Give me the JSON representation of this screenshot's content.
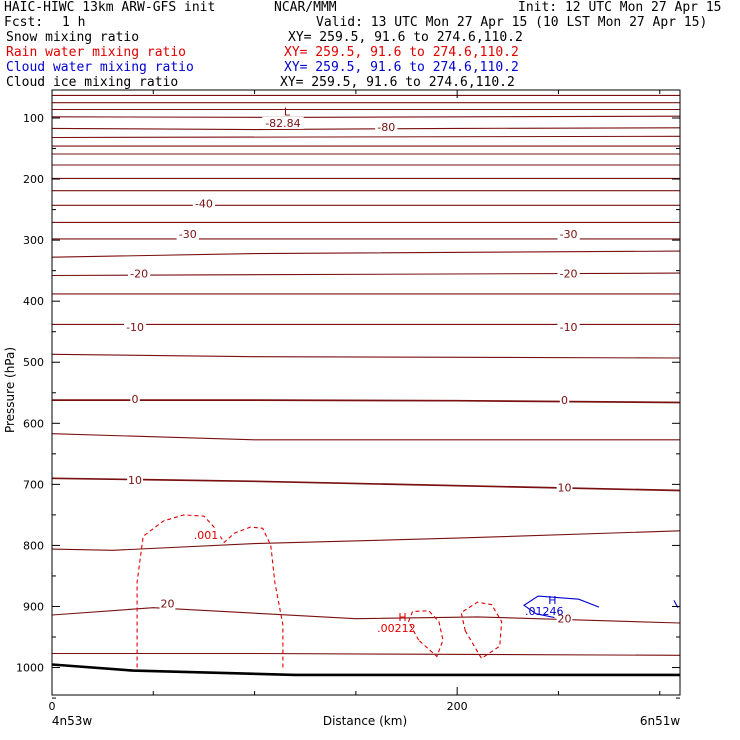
{
  "header": {
    "model": "HAIC-HIWC 13km ARW-GFS init",
    "org": "NCAR/MMM",
    "init": "Init: 12 UTC Mon 27 Apr 15",
    "fcst_label": "Fcst:",
    "fcst_value": "1 h",
    "valid": "Valid: 13 UTC Mon 27 Apr 15 (10 LST Mon 27 Apr 15)",
    "fields": [
      {
        "name": "Snow mixing ratio",
        "xy": "XY= 259.5, 91.6 to 274.6,110.2",
        "color": "#000000"
      },
      {
        "name": "Rain water mixing ratio",
        "xy": "XY= 259.5, 91.6 to 274.6,110.2",
        "color": "#e00000"
      },
      {
        "name": "Cloud water mixing ratio",
        "xy": "XY= 259.5, 91.6 to 274.6,110.2",
        "color": "#0000d0"
      },
      {
        "name": "Cloud ice mixing ratio",
        "xy": "XY= 259.5, 91.6 to 274.6,110.2",
        "color": "#000000"
      }
    ]
  },
  "chart_data": {
    "type": "line",
    "title": "",
    "xlabel": "Distance (km)",
    "ylabel": "Pressure (hPa)",
    "xlim": [
      0,
      310
    ],
    "ylim": [
      1050,
      50
    ],
    "x_ticks": [
      0,
      200
    ],
    "x_tick_labels": [
      "0",
      "200"
    ],
    "y_ticks": [
      100,
      200,
      300,
      400,
      500,
      600,
      700,
      800,
      900,
      1000
    ],
    "y_tick_labels": [
      "100",
      "200",
      "300",
      "400",
      "500",
      "600",
      "700",
      "800",
      "900",
      "1000"
    ],
    "left_endpoint_label": "4n53w",
    "right_endpoint_label": "6n51w",
    "grid": false,
    "colors": {
      "temperature": "#7a1010",
      "rain": "#e00000",
      "cloud_water": "#0000d0",
      "terrain": "#000000"
    },
    "isotherm_labels": [
      {
        "text": "-80",
        "x": 165,
        "p": 115
      },
      {
        "text": "-82.84",
        "x": 114,
        "p": 108
      },
      {
        "text": "-40",
        "x": 75,
        "p": 240
      },
      {
        "text": "-30",
        "x": 67,
        "p": 290
      },
      {
        "text": "-30",
        "x": 255,
        "p": 290
      },
      {
        "text": "-20",
        "x": 43,
        "p": 355
      },
      {
        "text": "-20",
        "x": 255,
        "p": 355
      },
      {
        "text": "-10",
        "x": 41,
        "p": 442
      },
      {
        "text": "-10",
        "x": 255,
        "p": 442
      },
      {
        "text": "0",
        "x": 41,
        "p": 560
      },
      {
        "text": "0",
        "x": 253,
        "p": 562
      },
      {
        "text": "10",
        "x": 41,
        "p": 693
      },
      {
        "text": "10",
        "x": 253,
        "p": 705
      },
      {
        "text": "20",
        "x": 57,
        "p": 895
      },
      {
        "text": "20",
        "x": 253,
        "p": 920
      }
    ],
    "extrema_labels": [
      {
        "text": "L",
        "x": 116,
        "p": 89,
        "color": "#7a1010"
      },
      {
        "text": "H",
        "x": 173,
        "p": 917,
        "color": "#e00000"
      },
      {
        "text": ".00212",
        "x": 170,
        "p": 935,
        "color": "#e00000"
      },
      {
        "text": "H",
        "x": 247,
        "p": 889,
        "color": "#0000d0"
      },
      {
        "text": ".01246",
        "x": 243,
        "p": 907,
        "color": "#0000d0"
      }
    ],
    "contour_labels": [
      {
        "text": ".001",
        "x": 76,
        "p": 783,
        "color": "#e00000"
      }
    ],
    "isotherms": [
      {
        "x": [
          0,
          310
        ],
        "p": [
          63,
          63
        ]
      },
      {
        "x": [
          0,
          310
        ],
        "p": [
          75,
          75
        ]
      },
      {
        "x": [
          0,
          310
        ],
        "p": [
          86,
          86
        ]
      },
      {
        "x": [
          0,
          110,
          310
        ],
        "p": [
          98,
          99,
          97
        ]
      },
      {
        "x": [
          0,
          100,
          200,
          310
        ],
        "p": [
          117,
          119,
          117,
          116
        ]
      },
      {
        "x": [
          0,
          310
        ],
        "p": [
          132,
          130
        ]
      },
      {
        "x": [
          0,
          310
        ],
        "p": [
          146,
          146
        ]
      },
      {
        "x": [
          0,
          310
        ],
        "p": [
          159,
          159
        ]
      },
      {
        "x": [
          0,
          310
        ],
        "p": [
          177,
          177
        ]
      },
      {
        "x": [
          0,
          310
        ],
        "p": [
          199,
          199
        ]
      },
      {
        "x": [
          0,
          310
        ],
        "p": [
          219,
          219
        ]
      },
      {
        "x": [
          0,
          310
        ],
        "p": [
          243,
          243
        ]
      },
      {
        "x": [
          0,
          310
        ],
        "p": [
          271,
          271
        ]
      },
      {
        "x": [
          0,
          310
        ],
        "p": [
          298,
          298
        ]
      },
      {
        "x": [
          0,
          100,
          310
        ],
        "p": [
          328,
          322,
          318
        ]
      },
      {
        "x": [
          0,
          310
        ],
        "p": [
          358,
          354
        ]
      },
      {
        "x": [
          0,
          310
        ],
        "p": [
          388,
          388
        ]
      },
      {
        "x": [
          0,
          310
        ],
        "p": [
          438,
          438
        ]
      },
      {
        "x": [
          0,
          100,
          310
        ],
        "p": [
          487,
          491,
          493
        ]
      },
      {
        "x": [
          0,
          100,
          200,
          310
        ],
        "p": [
          562,
          562,
          563,
          566
        ]
      },
      {
        "x": [
          0,
          100,
          310
        ],
        "p": [
          617,
          627,
          627
        ]
      },
      {
        "x": [
          0,
          100,
          310
        ],
        "p": [
          690,
          695,
          710
        ]
      },
      {
        "x": [
          0,
          30,
          100,
          200,
          310
        ],
        "p": [
          806,
          808,
          797,
          788,
          776
        ]
      },
      {
        "x": [
          0,
          50,
          150,
          210,
          310
        ],
        "p": [
          914,
          902,
          920,
          917,
          927
        ]
      },
      {
        "x": [
          0,
          100,
          310
        ],
        "p": [
          977,
          977,
          980
        ]
      }
    ],
    "terrain": {
      "x": [
        0,
        40,
        120,
        310
      ],
      "p": [
        995,
        1005,
        1012,
        1012
      ]
    },
    "rain_contours": [
      {
        "value": ".001",
        "x": [
          42,
          42,
          45,
          55,
          65,
          75,
          80,
          85,
          90,
          98,
          104,
          108,
          110,
          114,
          114
        ],
        "p": [
          1000,
          860,
          785,
          760,
          750,
          752,
          770,
          795,
          780,
          770,
          772,
          800,
          860,
          930,
          1000
        ]
      },
      {
        "value": ".001",
        "x": [
          181,
          176,
          178,
          186,
          191,
          193,
          190,
          181
        ],
        "p": [
          955,
          925,
          908,
          907,
          925,
          955,
          982,
          955
        ]
      },
      {
        "value": ".001",
        "x": [
          204,
          202,
          210,
          217,
          222,
          221,
          212,
          204
        ],
        "p": [
          940,
          910,
          893,
          897,
          925,
          965,
          985,
          940
        ]
      }
    ],
    "cloud_water_contours": [
      {
        "value": ".01246",
        "x": [
          270,
          260,
          240,
          233,
          239,
          248
        ],
        "p": [
          901,
          888,
          883,
          898,
          912,
          918
        ]
      },
      {
        "value": ".01246",
        "x": [
          307,
          309
        ],
        "p": [
          890,
          902
        ]
      }
    ]
  }
}
